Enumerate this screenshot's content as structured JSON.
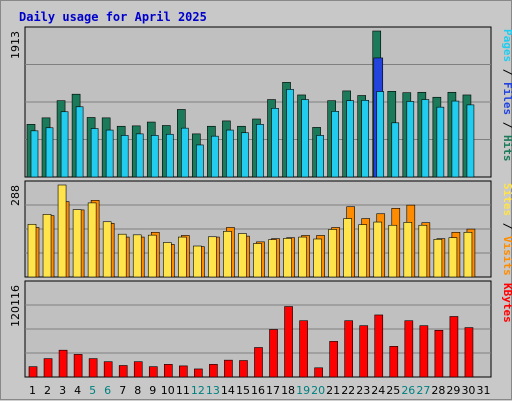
{
  "chart_data": {
    "type": "bar",
    "title": "Daily usage for April 2025",
    "days": [
      "1",
      "2",
      "3",
      "4",
      "5",
      "6",
      "7",
      "8",
      "9",
      "10",
      "11",
      "12",
      "13",
      "14",
      "15",
      "16",
      "17",
      "18",
      "19",
      "20",
      "21",
      "22",
      "23",
      "24",
      "25",
      "26",
      "27",
      "28",
      "29",
      "30",
      "31"
    ],
    "weekend_days": [
      "5",
      "6",
      "12",
      "13",
      "19",
      "20",
      "26",
      "27"
    ],
    "panels": [
      {
        "name": "top",
        "max_label": "1913",
        "ymax": 1913,
        "right_labels": [
          "Pages",
          "Files",
          "Hits"
        ],
        "series": [
          {
            "name": "Hits",
            "color": "#1a7a5a",
            "values": [
              690,
              775,
              1000,
              1085,
              780,
              775,
              665,
              670,
              720,
              675,
              885,
              565,
              665,
              735,
              665,
              760,
              1015,
              1240,
              1075,
              650,
              1000,
              1128,
              1068,
              1913,
              1123,
              1105,
              1110,
              1045,
              1110,
              1075,
              null
            ]
          },
          {
            "name": "Files",
            "color": "#2244dd",
            "values": [
              null,
              null,
              null,
              null,
              null,
              null,
              null,
              null,
              null,
              null,
              null,
              null,
              null,
              null,
              null,
              null,
              null,
              null,
              null,
              null,
              null,
              null,
              null,
              1560,
              null,
              null,
              null,
              null,
              null,
              null,
              null
            ]
          },
          {
            "name": "Pages",
            "color": "#22ccee",
            "values": [
              605,
              645,
              855,
              920,
              635,
              615,
              545,
              565,
              545,
              560,
              640,
              420,
              535,
              615,
              580,
              690,
              900,
              1148,
              1015,
              545,
              860,
              1000,
              1005,
              1120,
              710,
              990,
              1015,
              915,
              995,
              945,
              null
            ]
          }
        ]
      },
      {
        "name": "middle",
        "max_label": "288",
        "ymax": 288,
        "right_labels": [
          "Sites",
          "Visits"
        ],
        "series": [
          {
            "name": "Visits",
            "color": "#ff8c00",
            "values": [
              155,
              192,
              236,
              210,
              240,
              168,
              125,
              125,
              140,
              102,
              130,
              95,
              125,
              155,
              128,
              110,
              120,
              123,
              130,
              130,
              155,
              220,
              183,
              198,
              215,
              225,
              170,
              120,
              140,
              150,
              null
            ]
          },
          {
            "name": "Sites",
            "color": "#ffe44c",
            "values": [
              165,
              196,
              288,
              211,
              232,
              173,
              134,
              132,
              131,
              108,
              125,
              97,
              126,
              143,
              136,
              105,
              117,
              121,
              125,
              119,
              149,
              183,
              164,
              172,
              162,
              171,
              162,
              118,
              123,
              140,
              null
            ]
          }
        ]
      },
      {
        "name": "bottom",
        "max_label": "120116",
        "ymax": 120116,
        "right_labels": [
          "KBytes"
        ],
        "series": [
          {
            "name": "KBytes",
            "color": "#ff0000",
            "values": [
              13500,
              24000,
              35000,
              29500,
              24000,
              20000,
              15000,
              20000,
              13500,
              16500,
              14500,
              10500,
              16500,
              22000,
              21500,
              38500,
              62000,
              92000,
              73500,
              12000,
              46500,
              73500,
              67000,
              81000,
              40000,
              73500,
              67000,
              61000,
              79000,
              64500,
              null
            ]
          }
        ]
      }
    ]
  }
}
